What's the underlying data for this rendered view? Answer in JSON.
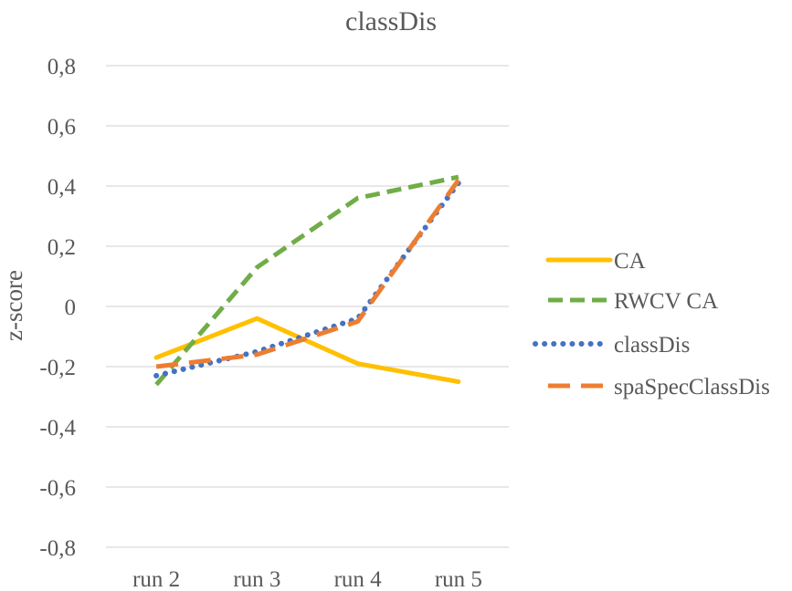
{
  "chart_data": {
    "type": "line",
    "title": "classDis",
    "xlabel": "",
    "ylabel": "z-score",
    "categories": [
      "run 2",
      "run 3",
      "run 4",
      "run 5"
    ],
    "ylim": [
      -0.8,
      0.8
    ],
    "yticks": [
      "0,8",
      "0,6",
      "0,4",
      "0,2",
      "0",
      "-0,2",
      "-0,4",
      "-0,6",
      "-0,8"
    ],
    "ytick_values": [
      0.8,
      0.6,
      0.4,
      0.2,
      0,
      -0.2,
      -0.4,
      -0.6,
      -0.8
    ],
    "grid": true,
    "legend_position": "right",
    "series": [
      {
        "name": "CA",
        "values": [
          -0.17,
          -0.04,
          -0.19,
          -0.25
        ],
        "color": "#FFC000",
        "style": "solid"
      },
      {
        "name": "RWCV CA",
        "values": [
          -0.26,
          0.13,
          0.36,
          0.43
        ],
        "color": "#70AD47",
        "style": "dashed"
      },
      {
        "name": "classDis",
        "values": [
          -0.23,
          -0.15,
          -0.04,
          0.41
        ],
        "color": "#4472C4",
        "style": "dotted"
      },
      {
        "name": "spaSpecClassDis",
        "values": [
          -0.2,
          -0.16,
          -0.05,
          0.42
        ],
        "color": "#ED7D31",
        "style": "longdash"
      }
    ]
  }
}
